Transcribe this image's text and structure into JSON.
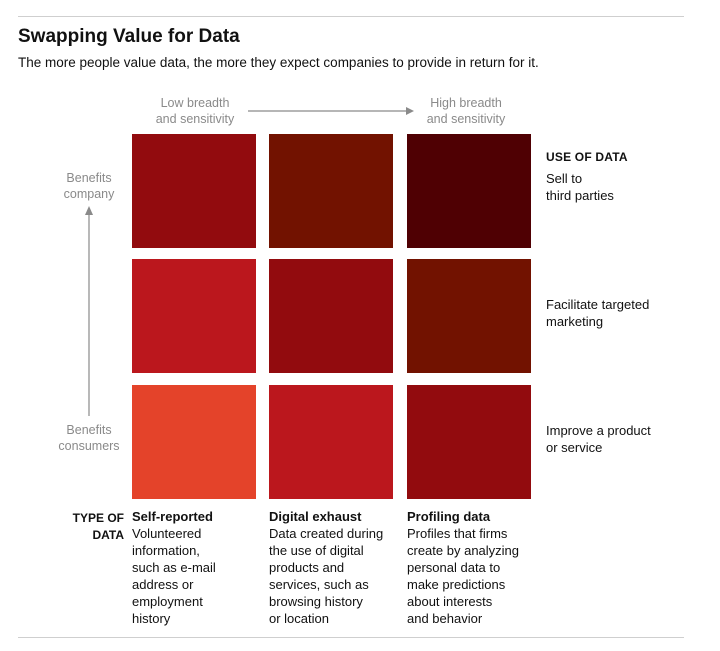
{
  "title": "Swapping Value for Data",
  "subtitle": "The more people value data, the more they expect companies to provide in return for it.",
  "x_axis": {
    "low": [
      "Low breadth",
      "and sensitivity"
    ],
    "high": [
      "High breadth",
      "and sensitivity"
    ]
  },
  "y_axis": {
    "top": [
      "Benefits",
      "company"
    ],
    "bottom": [
      "Benefits",
      "consumers"
    ]
  },
  "use_of_data": {
    "heading": "USE OF DATA",
    "rows": [
      [
        "Sell to",
        "third parties"
      ],
      [
        "Facilitate targeted",
        "marketing"
      ],
      [
        "Improve a product",
        "or service"
      ]
    ]
  },
  "type_of_data": {
    "heading": [
      "TYPE OF",
      "DATA"
    ],
    "columns": [
      {
        "name": "Self-reported",
        "desc": [
          "Volunteered",
          "information,",
          "such as e-mail",
          "address or",
          "employment",
          "history"
        ]
      },
      {
        "name": "Digital exhaust",
        "desc": [
          "Data created during",
          "the use of digital",
          "products and",
          "services, such as",
          "browsing history",
          "or location"
        ]
      },
      {
        "name": "Profiling data",
        "desc": [
          "Profiles that firms",
          "create by analyzing",
          "personal data to",
          "make predictions",
          "about interests",
          "and behavior"
        ]
      }
    ]
  },
  "grid_colors": [
    [
      "#920b0e",
      "#721200",
      "#4f0003"
    ],
    [
      "#bb171d",
      "#920b0e",
      "#721200"
    ],
    [
      "#e4432a",
      "#bb171d",
      "#920b0e"
    ]
  ],
  "axis_color": "#8a8a8a"
}
